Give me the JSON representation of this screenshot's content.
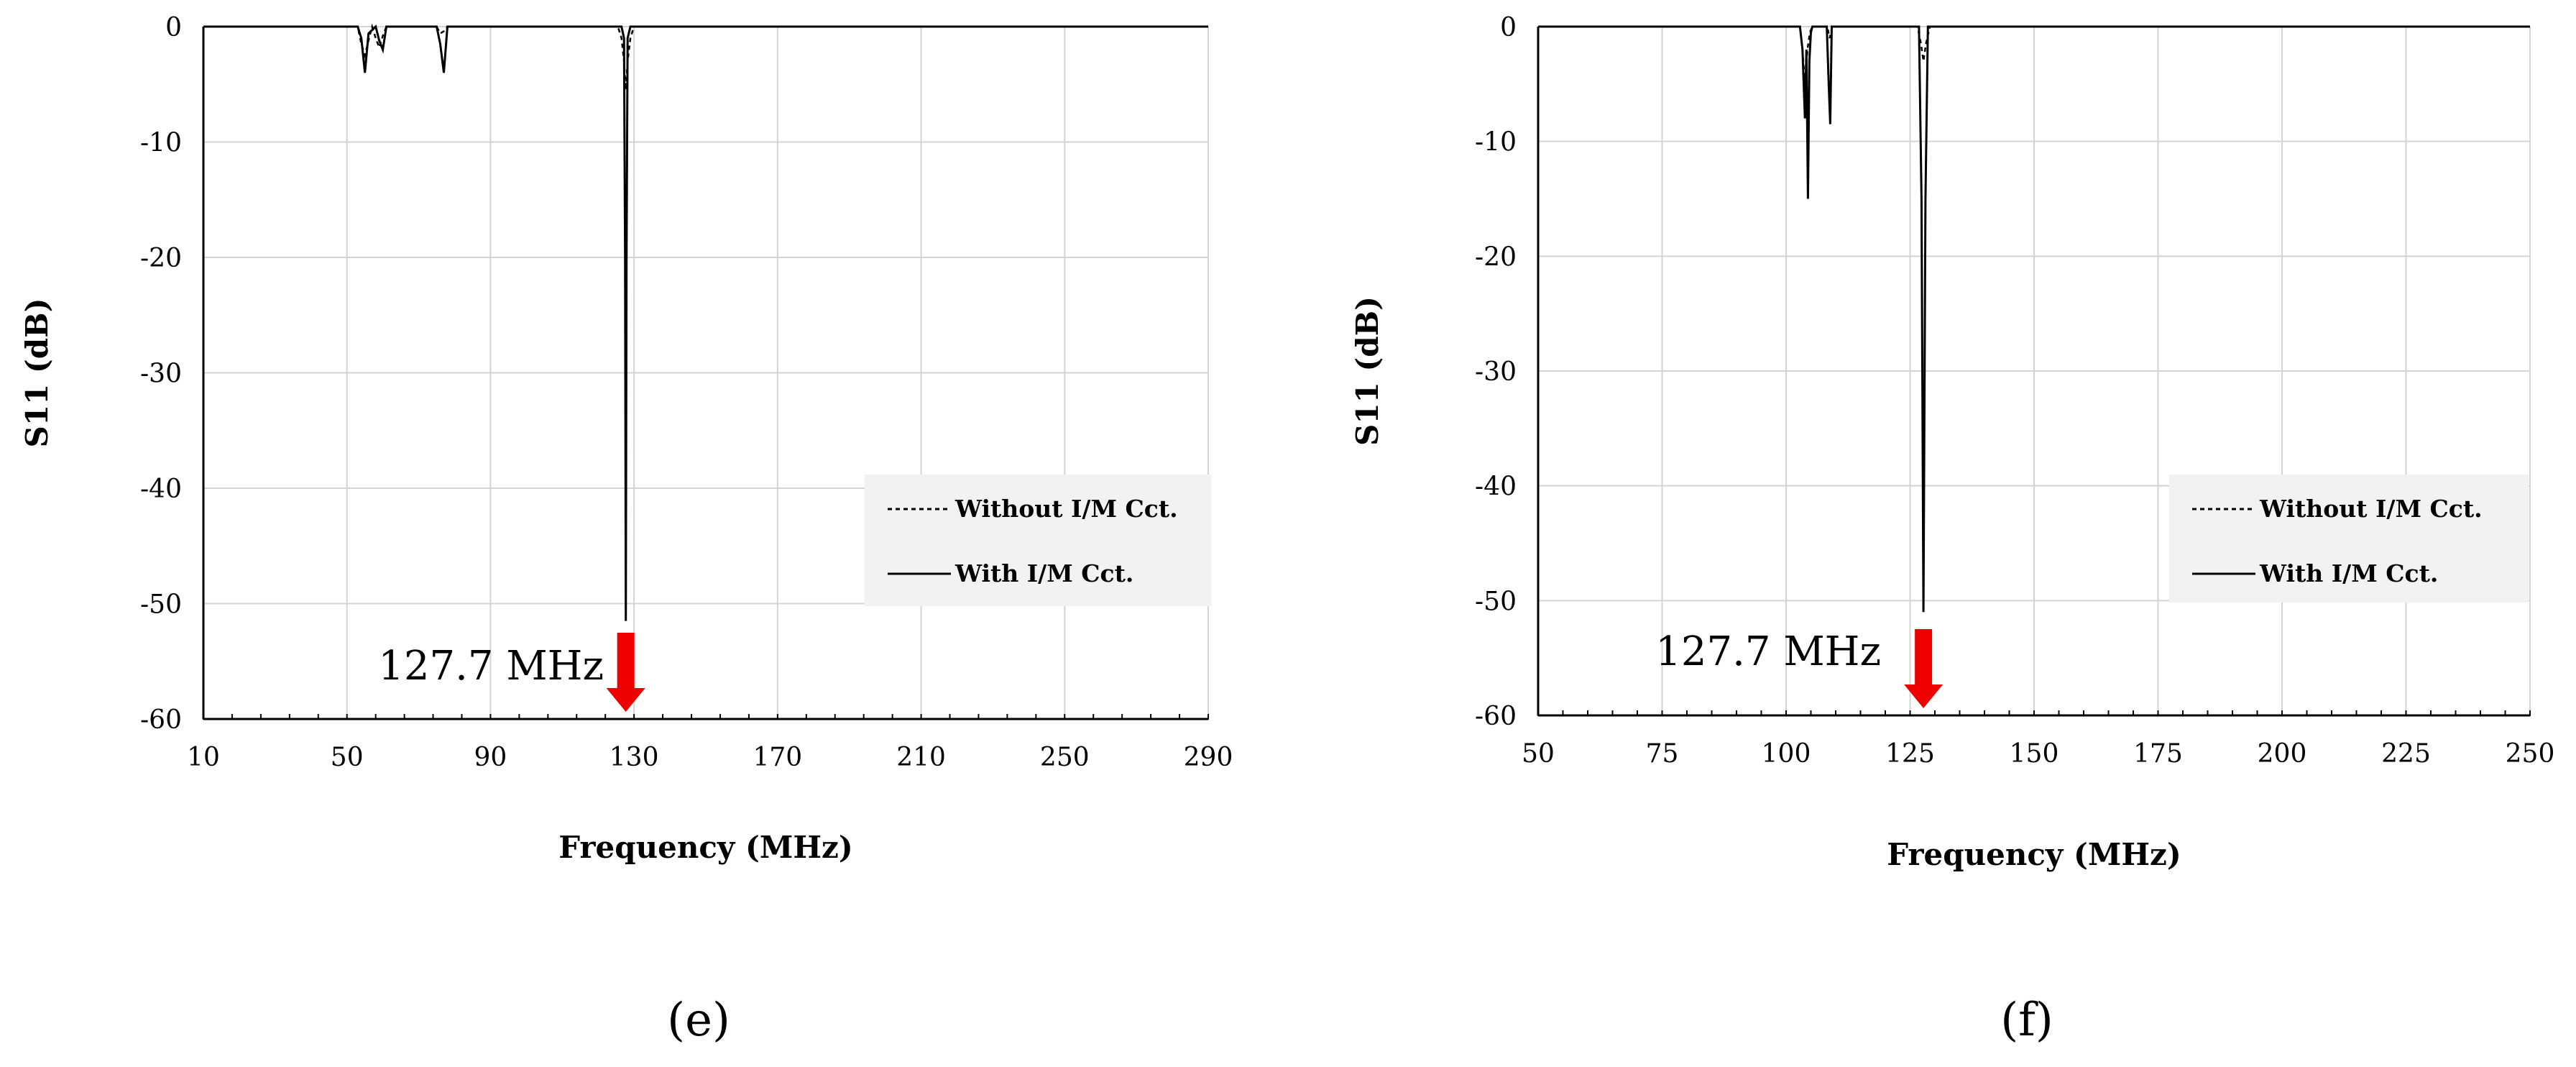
{
  "chart_data": [
    {
      "type": "line",
      "panel_label": "(e)",
      "xlabel": "Frequency (MHz)",
      "ylabel": "S11 (dB)",
      "xlim": [
        10,
        290
      ],
      "ylim": [
        -60,
        0
      ],
      "xticks": [
        10,
        50,
        90,
        130,
        170,
        210,
        250,
        290
      ],
      "yticks": [
        0,
        -10,
        -20,
        -30,
        -40,
        -50,
        -60
      ],
      "grid": true,
      "legend_position": "right",
      "annotation": {
        "text": "127.7 MHz",
        "x": 127.7,
        "arrow_color": "#ee0000"
      },
      "series": [
        {
          "name": "Without I/M Cct.",
          "style": "dashed",
          "x": [
            10,
            53,
            54,
            55,
            56,
            57,
            58,
            59,
            60,
            61,
            75,
            76,
            77,
            78,
            125.5,
            126.5,
            127.2,
            127.7,
            128.2,
            129,
            130,
            290
          ],
          "y": [
            0,
            0,
            -1.5,
            -2.5,
            -1.2,
            0,
            -1.0,
            -1.8,
            -0.8,
            0,
            0,
            -0.6,
            -0.4,
            0,
            0,
            -1.0,
            -3.0,
            -5.5,
            -3.0,
            -1.0,
            0,
            0
          ]
        },
        {
          "name": "With I/M Cct.",
          "style": "solid",
          "x": [
            10,
            53,
            54,
            55,
            56,
            58,
            59,
            60,
            61,
            75,
            76,
            77,
            78,
            126.5,
            127.2,
            127.5,
            127.7,
            127.9,
            128.2,
            129,
            290
          ],
          "y": [
            0,
            0,
            -1.0,
            -4.0,
            -0.6,
            0,
            -1.2,
            -2.0,
            0,
            0,
            -1.5,
            -4.0,
            0,
            0,
            -1.0,
            -20,
            -51.5,
            -20,
            -1.0,
            0,
            0
          ]
        }
      ]
    },
    {
      "type": "line",
      "panel_label": "(f)",
      "xlabel": "Frequency (MHz)",
      "ylabel": "S11 (dB)",
      "xlim": [
        50,
        250
      ],
      "ylim": [
        -60,
        0
      ],
      "xticks": [
        50,
        75,
        100,
        125,
        150,
        175,
        200,
        225,
        250
      ],
      "yticks": [
        0,
        -10,
        -20,
        -30,
        -40,
        -50,
        -60
      ],
      "grid": true,
      "legend_position": "right",
      "annotation": {
        "text": "127.7 MHz",
        "x": 127.7,
        "arrow_color": "#ee0000"
      },
      "series": [
        {
          "name": "Without I/M Cct.",
          "style": "dashed",
          "x": [
            50,
            102.8,
            103.3,
            103.8,
            104.3,
            104.8,
            105.3,
            108.3,
            108.8,
            109.3,
            126.5,
            127.2,
            127.7,
            128.2,
            129,
            250
          ],
          "y": [
            0,
            0,
            -2.0,
            -5.0,
            -2.0,
            -0.5,
            0,
            0,
            -1.0,
            0,
            0,
            -1.5,
            -3.0,
            -1.5,
            0,
            0
          ]
        },
        {
          "name": "With I/M Cct.",
          "style": "solid",
          "x": [
            50,
            102.8,
            103.3,
            103.8,
            104.1,
            104.4,
            104.7,
            105.0,
            105.3,
            108.2,
            108.6,
            108.9,
            109.2,
            126.8,
            127.3,
            127.7,
            128.1,
            128.6,
            250
          ],
          "y": [
            0,
            0,
            -2.0,
            -8.0,
            -2.0,
            -15.0,
            -3.0,
            -0.5,
            0,
            0,
            -5.0,
            -8.5,
            0,
            0,
            -15,
            -51.0,
            -15,
            0,
            0
          ]
        }
      ]
    }
  ]
}
